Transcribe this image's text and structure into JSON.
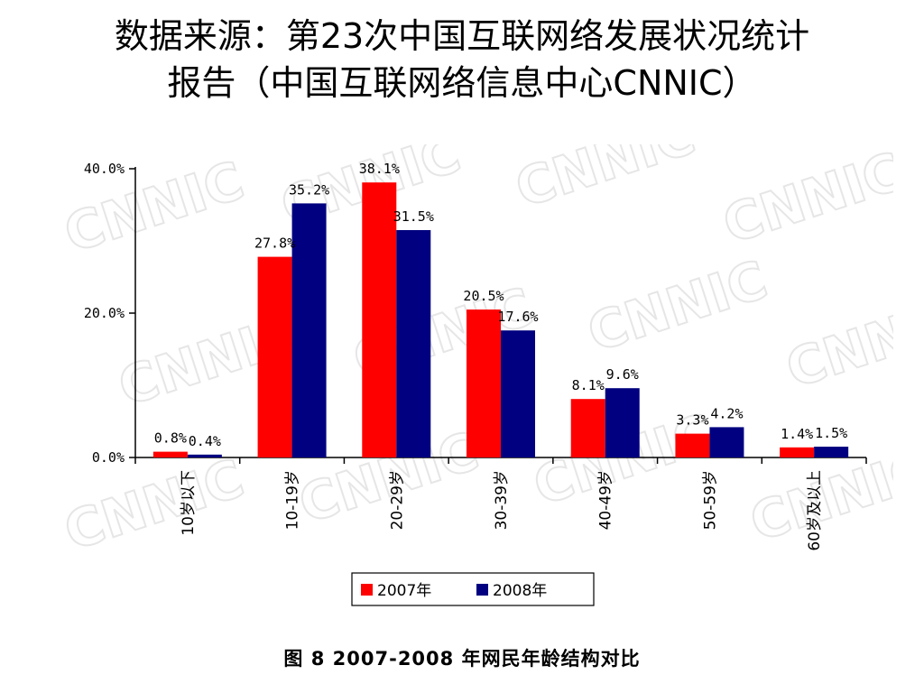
{
  "title": {
    "line1": "数据来源：第23次中国互联网络发展状况统计",
    "line2": "报告（中国互联网络信息中心CNNIC）"
  },
  "watermark": "CNNIC",
  "caption": "图 8    2007-2008 年网民年龄结构对比",
  "colors": {
    "2007": "#ff0000",
    "2008": "#000080"
  },
  "chart_data": {
    "type": "bar",
    "categories": [
      "10岁以下",
      "10-19岁",
      "20-29岁",
      "30-39岁",
      "40-49岁",
      "50-59岁",
      "60岁及以上"
    ],
    "series": [
      {
        "name": "2007年",
        "values": [
          0.8,
          27.8,
          38.1,
          20.5,
          8.1,
          3.3,
          1.4
        ],
        "labels": [
          "0.8%",
          "27.8%",
          "38.1%",
          "20.5%",
          "8.1%",
          "3.3%",
          "1.4%"
        ]
      },
      {
        "name": "2008年",
        "values": [
          0.4,
          35.2,
          31.5,
          17.6,
          9.6,
          4.2,
          1.5
        ],
        "labels": [
          "0.4%",
          "35.2%",
          "31.5%",
          "17.6%",
          "9.6%",
          "4.2%",
          "1.5%"
        ]
      }
    ],
    "yticks": [
      0,
      20,
      40
    ],
    "ytick_labels": [
      "0.0%",
      "20.0%",
      "40.0%"
    ],
    "ylim": [
      0,
      40
    ],
    "legend_position": "bottom-right",
    "grid": false
  }
}
